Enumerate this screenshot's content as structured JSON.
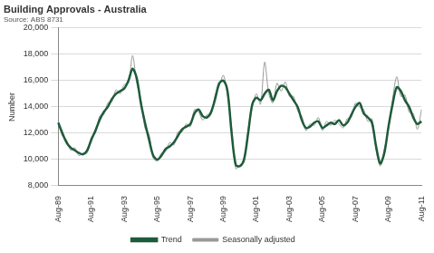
{
  "chart_data": {
    "type": "line",
    "title": "Building Approvals - Australia",
    "subtitle": "Source: ABS 8731",
    "y_label": "Number",
    "categories": [
      "Aug-89",
      null,
      null,
      null,
      null,
      null,
      null,
      null,
      "Aug-91",
      null,
      null,
      null,
      null,
      null,
      null,
      null,
      "Aug-93",
      null,
      null,
      null,
      null,
      null,
      null,
      null,
      "Aug-95",
      null,
      null,
      null,
      null,
      null,
      null,
      null,
      "Aug-97",
      null,
      null,
      null,
      null,
      null,
      null,
      null,
      "Aug-99",
      null,
      null,
      null,
      null,
      null,
      null,
      null,
      "Aug-01",
      null,
      null,
      null,
      null,
      null,
      null,
      null,
      "Aug-03",
      null,
      null,
      null,
      null,
      null,
      null,
      null,
      "Aug-05",
      null,
      null,
      null,
      null,
      null,
      null,
      null,
      "Aug-07",
      null,
      null,
      null,
      null,
      null,
      null,
      null,
      "Aug-09",
      null,
      null,
      null,
      null,
      null,
      null,
      null,
      "Aug-11"
    ],
    "series": [
      {
        "name": "Seasonally adjusted",
        "color": "#999999",
        "values": [
          12900,
          11800,
          11500,
          10700,
          10900,
          10300,
          10500,
          10500,
          11700,
          12000,
          13300,
          13400,
          14300,
          14400,
          15300,
          15000,
          15700,
          15800,
          17900,
          15800,
          14600,
          12400,
          11900,
          10100,
          9900,
          10500,
          10600,
          11300,
          11100,
          12100,
          12100,
          12700,
          12500,
          13800,
          13600,
          13000,
          13400,
          13400,
          14900,
          15600,
          16400,
          14900,
          12400,
          9300,
          9600,
          9800,
          12300,
          14000,
          15000,
          14200,
          17400,
          15000,
          14300,
          15800,
          15200,
          15900,
          14800,
          14800,
          13700,
          13300,
          12200,
          12700,
          12600,
          13200,
          12200,
          12900,
          12600,
          13000,
          12700,
          12400,
          13100,
          13200,
          14300,
          14000,
          13800,
          12900,
          13100,
          10700,
          9500,
          10800,
          12300,
          14600,
          16300,
          14800,
          14900,
          13600,
          13500,
          12300,
          13800
        ]
      },
      {
        "name": "Trend",
        "color": "#1e5b3a",
        "values": [
          12800,
          12000,
          11300,
          10900,
          10700,
          10500,
          10400,
          10700,
          11500,
          12200,
          13000,
          13600,
          14000,
          14600,
          15000,
          15200,
          15400,
          16000,
          16900,
          16200,
          14300,
          12800,
          11500,
          10300,
          10000,
          10300,
          10800,
          11000,
          11300,
          11800,
          12300,
          12500,
          12700,
          13500,
          13800,
          13300,
          13200,
          13600,
          14600,
          15800,
          16000,
          15200,
          12000,
          9600,
          9500,
          10000,
          12000,
          14200,
          14700,
          14500,
          15000,
          15300,
          14500,
          15200,
          15600,
          15500,
          15000,
          14500,
          14000,
          13000,
          12400,
          12500,
          12800,
          12900,
          12400,
          12600,
          12800,
          12700,
          13000,
          12600,
          12800,
          13400,
          14000,
          14300,
          13500,
          13200,
          12800,
          11000,
          9700,
          10500,
          12500,
          14200,
          15500,
          15200,
          14500,
          14000,
          13200,
          12700,
          12900
        ]
      }
    ],
    "ylim": [
      8000,
      20000
    ],
    "yticks": [
      {
        "value": 8000,
        "label": "8,000"
      },
      {
        "value": 10000,
        "label": "10,000"
      },
      {
        "value": 12000,
        "label": "12,000"
      },
      {
        "value": 14000,
        "label": "14,000"
      },
      {
        "value": 16000,
        "label": "16,000"
      },
      {
        "value": 18000,
        "label": "18,000"
      },
      {
        "value": 20000,
        "label": "20,000"
      }
    ],
    "grid": true,
    "legend": "bottom"
  }
}
